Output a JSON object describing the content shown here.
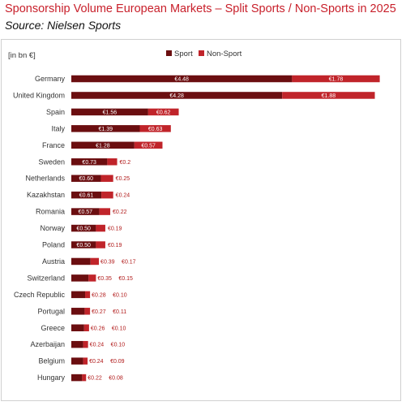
{
  "title": "Sponsorship Volume European Markets – Split Sports / Non-Sports in 2025",
  "source": "Source: Nielsen Sports",
  "colors": {
    "sport": "#6b0e10",
    "non_sport": "#c0242a",
    "title": "#c8202b"
  },
  "chart_data": {
    "type": "bar",
    "orientation": "horizontal",
    "stacked": true,
    "unit_label": "[in bn €]",
    "legend": {
      "position": "top",
      "entries": [
        "Sport",
        "Non-Sport"
      ]
    },
    "grid": false,
    "xlim": [
      0,
      6.3
    ],
    "categories": [
      "Germany",
      "United Kingdom",
      "Spain",
      "Italy",
      "France",
      "Sweden",
      "Netherlands",
      "Kazakhstan",
      "Romania",
      "Norway",
      "Poland",
      "Austria",
      "Switzerland",
      "Czech Republic",
      "Portugal",
      "Greece",
      "Azerbaijan",
      "Belgium",
      "Hungary"
    ],
    "series": [
      {
        "name": "Sport",
        "values": [
          4.48,
          4.28,
          1.56,
          1.39,
          1.28,
          0.73,
          0.6,
          0.61,
          0.57,
          0.5,
          0.5,
          0.39,
          0.35,
          0.28,
          0.27,
          0.26,
          0.24,
          0.24,
          0.22
        ],
        "labels": [
          "€4.48",
          "€4.28",
          "€1.56",
          "€1.39",
          "€1.28",
          "€0.73",
          "€0.60",
          "€0.61",
          "€0.57",
          "€0.50",
          "€0.50",
          "€0.39",
          "€0.35",
          "€0.28",
          "€0.27",
          "€0.26",
          "€0.24",
          "€0.24",
          "€0.22"
        ]
      },
      {
        "name": "Non-Sport",
        "values": [
          1.78,
          1.88,
          0.62,
          0.63,
          0.57,
          0.2,
          0.25,
          0.24,
          0.22,
          0.19,
          0.19,
          0.17,
          0.15,
          0.1,
          0.11,
          0.1,
          0.1,
          0.09,
          0.08
        ],
        "labels": [
          "€1.78",
          "€1.88",
          "€0.62",
          "€0.63",
          "€0.57",
          "€0.2",
          "€0.25",
          "€0.24",
          "€0.22",
          "€0.19",
          "€0.19",
          "€0.17",
          "€0.15",
          "€0.10",
          "€0.11",
          "€0.10",
          "€0.10",
          "€0.09",
          "€0.08"
        ]
      }
    ]
  }
}
